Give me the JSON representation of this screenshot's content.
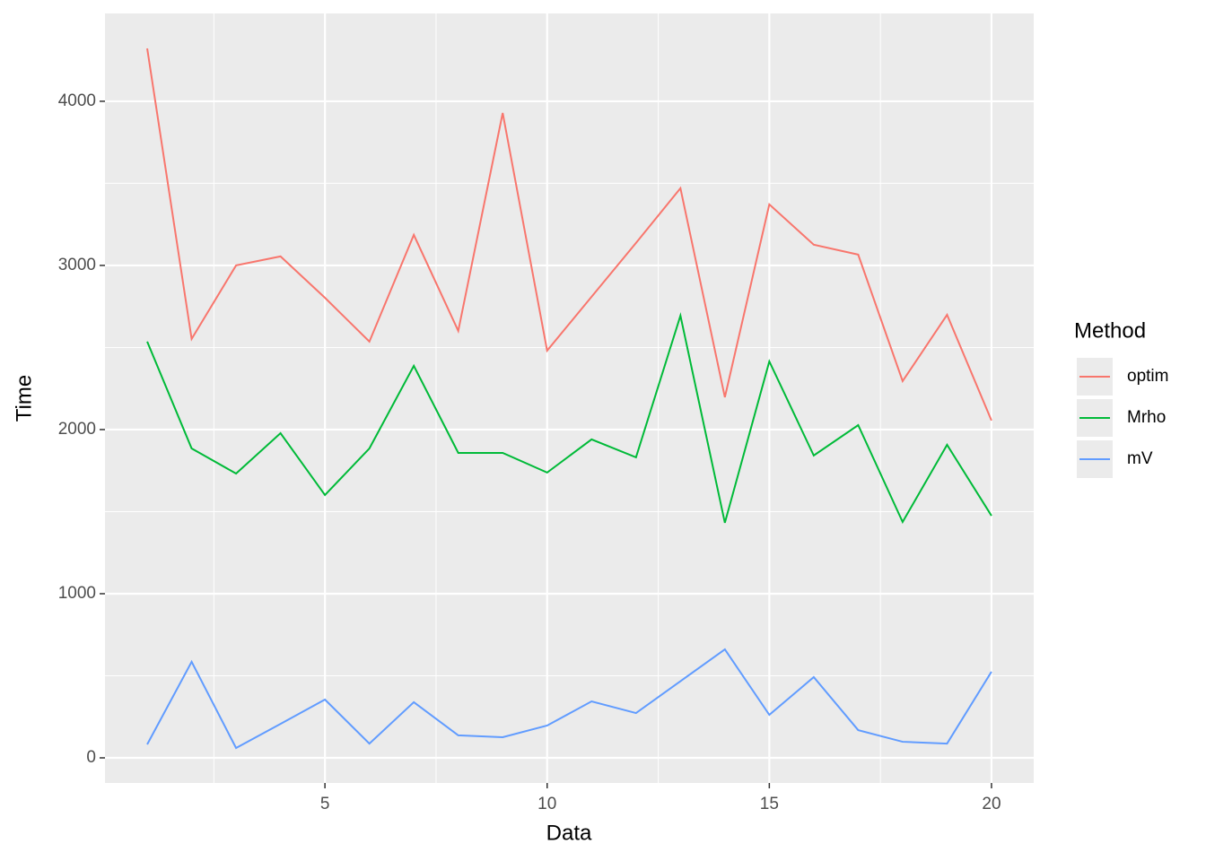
{
  "chart_data": {
    "type": "line",
    "x_label": "Data",
    "y_label": "Time",
    "legend_title": "Method",
    "legend": "right",
    "x": [
      1,
      2,
      3,
      4,
      5,
      6,
      7,
      8,
      9,
      10,
      11,
      12,
      13,
      14,
      15,
      16,
      17,
      18,
      19,
      20
    ],
    "series": [
      {
        "name": "optim",
        "color": "#F8766D",
        "values": [
          4322,
          2552,
          3000,
          3055,
          2803,
          2536,
          3186,
          2601,
          3929,
          2481,
          2809,
          3137,
          3470,
          2197,
          3372,
          3126,
          3066,
          2295,
          2699,
          2055
        ]
      },
      {
        "name": "Mrho",
        "color": "#00BA38",
        "values": [
          2536,
          1885,
          1732,
          1978,
          1601,
          1885,
          2388,
          1858,
          1858,
          1738,
          1940,
          1831,
          2694,
          1432,
          2415,
          1842,
          2027,
          1437,
          1907,
          1475
        ]
      },
      {
        "name": "mV",
        "color": "#619CFF",
        "values": [
          82,
          585,
          60,
          207,
          355,
          87,
          339,
          137,
          126,
          197,
          344,
          273,
          467,
          661,
          262,
          492,
          169,
          98,
          87,
          525
        ]
      }
    ],
    "xlim": [
      0.05,
      20.95
    ],
    "xticks": [
      5,
      10,
      15,
      20
    ],
    "xminorticks": [
      2.5,
      7.5,
      12.5,
      17.5
    ],
    "ylim": [
      -153,
      4535
    ],
    "yticks": [
      0,
      1000,
      2000,
      3000,
      4000
    ],
    "yminorticks": [
      500,
      1500,
      2500,
      3500
    ],
    "grid": true
  }
}
